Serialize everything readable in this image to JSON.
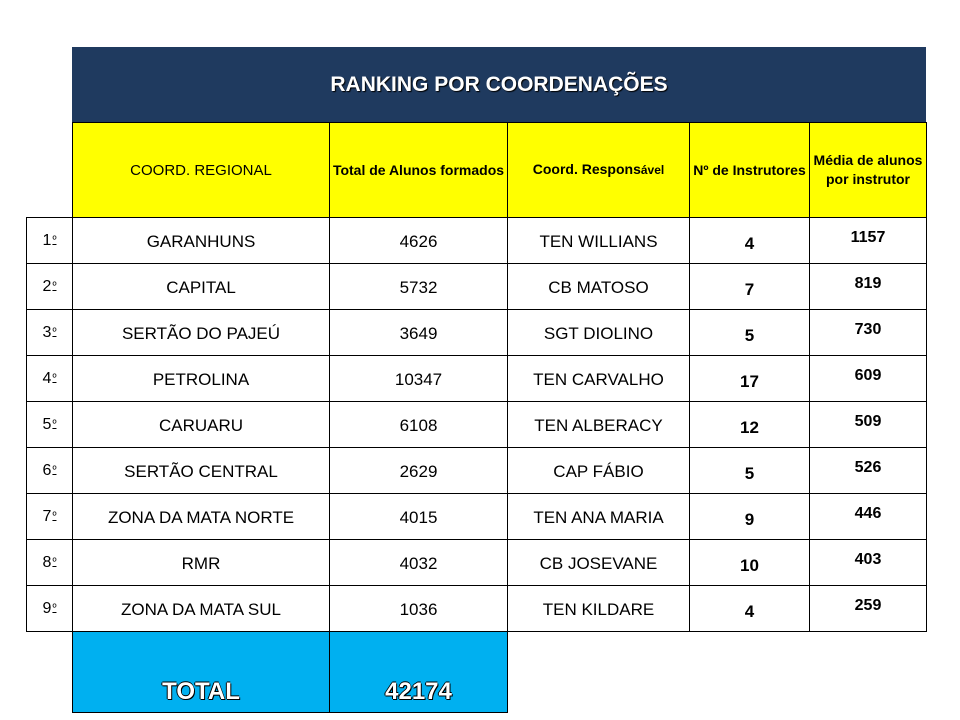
{
  "title": "RANKING POR COORDENAÇÕES",
  "headers": {
    "coord_regional": "COORD. REGIONAL",
    "total_alunos": "Total de Alunos formados",
    "coord_resp_main": "Coord. Respons",
    "coord_resp_suffix": "ável",
    "num_instrutores": "Nº de Instrutores",
    "media": "Média de alunos por instrutor"
  },
  "ordinal_suffix": "º",
  "rows": [
    {
      "pos": "1",
      "coord": "GARANHUNS",
      "total": "4626",
      "resp": "TEN WILLIANS",
      "instr": "4",
      "media": "1157"
    },
    {
      "pos": "2",
      "coord": "CAPITAL",
      "total": "5732",
      "resp": "CB MATOSO",
      "instr": "7",
      "media": "819"
    },
    {
      "pos": "3",
      "coord": "SERTÃO DO PAJEÚ",
      "total": "3649",
      "resp": "SGT DIOLINO",
      "instr": "5",
      "media": "730"
    },
    {
      "pos": "4",
      "coord": "PETROLINA",
      "total": "10347",
      "resp": "TEN CARVALHO",
      "instr": "17",
      "media": "609"
    },
    {
      "pos": "5",
      "coord": "CARUARU",
      "total": "6108",
      "resp": "TEN ALBERACY",
      "instr": "12",
      "media": "509"
    },
    {
      "pos": "6",
      "coord": "SERTÃO CENTRAL",
      "total": "2629",
      "resp": "CAP FÁBIO",
      "instr": "5",
      "media": "526"
    },
    {
      "pos": "7",
      "coord": "ZONA DA MATA NORTE",
      "total": "4015",
      "resp": "TEN ANA MARIA",
      "instr": "9",
      "media": "446"
    },
    {
      "pos": "8",
      "coord": "RMR",
      "total": "4032",
      "resp": "CB JOSEVANE",
      "instr": "10",
      "media": "403"
    },
    {
      "pos": "9",
      "coord": "ZONA DA MATA SUL",
      "total": "1036",
      "resp": "TEN KILDARE",
      "instr": "4",
      "media": "259"
    }
  ],
  "total": {
    "label": "TOTAL",
    "value": "42174"
  },
  "colors": {
    "title_bg": "#1f3a5f",
    "header_bg": "#ffff00",
    "total_bg": "#00b0f0"
  }
}
